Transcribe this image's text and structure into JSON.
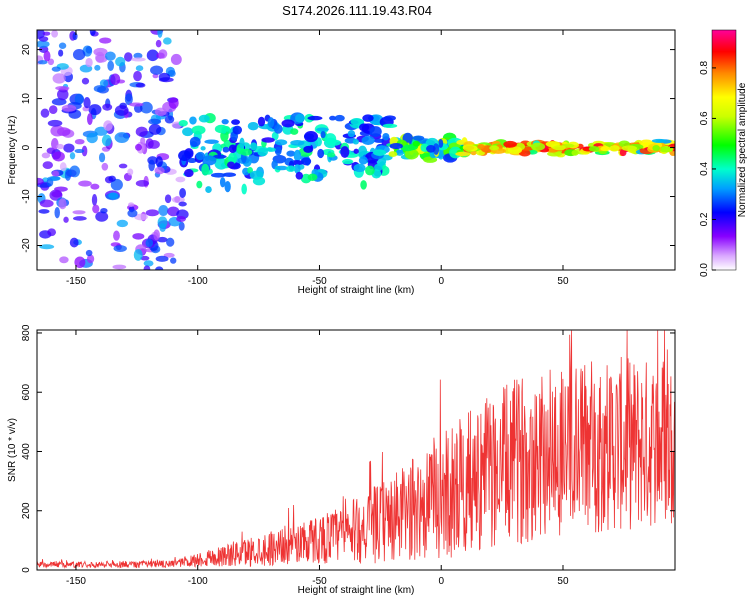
{
  "title": "S174.2026.111.19.43.R04",
  "chart_data": [
    {
      "type": "heatmap",
      "name": "spectrogram",
      "xlabel": "Height of straight line (km)",
      "ylabel": "Frequency (Hz)",
      "xlim": [
        -166,
        96
      ],
      "ylim": [
        -25,
        24
      ],
      "xticks": [
        -150,
        -100,
        -50,
        0,
        50
      ],
      "yticks": [
        -20,
        -10,
        0,
        10,
        20
      ],
      "colorbar": {
        "label": "Normalized spectral amplitude",
        "range": [
          0,
          0.95
        ],
        "ticks": [
          0.0,
          0.2,
          0.4,
          0.6,
          0.8
        ],
        "tick_labels": [
          "0.0",
          "0.2",
          "0.4",
          "0.6",
          "0.8"
        ]
      },
      "description_regions": [
        {
          "x": [
            -166,
            -106
          ],
          "freq": [
            -25,
            24
          ],
          "amp": [
            0.05,
            0.35
          ],
          "kind": "noise"
        },
        {
          "x": [
            -106,
            -20
          ],
          "freq": [
            -15,
            6
          ],
          "amp": [
            0.2,
            0.45
          ],
          "kind": "scattered"
        },
        {
          "x": [
            -20,
            10
          ],
          "freq": [
            -4,
            4
          ],
          "amp": [
            0.25,
            0.7
          ],
          "kind": "narrowing"
        },
        {
          "x": [
            10,
            96
          ],
          "freq": [
            -2,
            2
          ],
          "amp": [
            0.3,
            0.9
          ],
          "kind": "line"
        }
      ]
    },
    {
      "type": "line",
      "name": "snr",
      "xlabel": "Height of straight line (km)",
      "ylabel": "SNR (10 * v/v)",
      "xlim": [
        -166,
        96
      ],
      "ylim": [
        0,
        810
      ],
      "xticks": [
        -150,
        -100,
        -50,
        0,
        50
      ],
      "yticks": [
        0,
        200,
        400,
        600,
        800
      ],
      "color": "#ee3333",
      "envelope": [
        {
          "x": -166,
          "mean": 18,
          "spread": 10
        },
        {
          "x": -110,
          "mean": 20,
          "spread": 12
        },
        {
          "x": -100,
          "mean": 35,
          "spread": 25
        },
        {
          "x": -80,
          "mean": 60,
          "spread": 50
        },
        {
          "x": -60,
          "mean": 90,
          "spread": 70
        },
        {
          "x": -40,
          "mean": 120,
          "spread": 100
        },
        {
          "x": -20,
          "mean": 170,
          "spread": 150
        },
        {
          "x": 0,
          "mean": 250,
          "spread": 220
        },
        {
          "x": 20,
          "mean": 330,
          "spread": 260
        },
        {
          "x": 40,
          "mean": 400,
          "spread": 300
        },
        {
          "x": 60,
          "mean": 420,
          "spread": 300
        },
        {
          "x": 96,
          "mean": 430,
          "spread": 290
        }
      ]
    }
  ]
}
